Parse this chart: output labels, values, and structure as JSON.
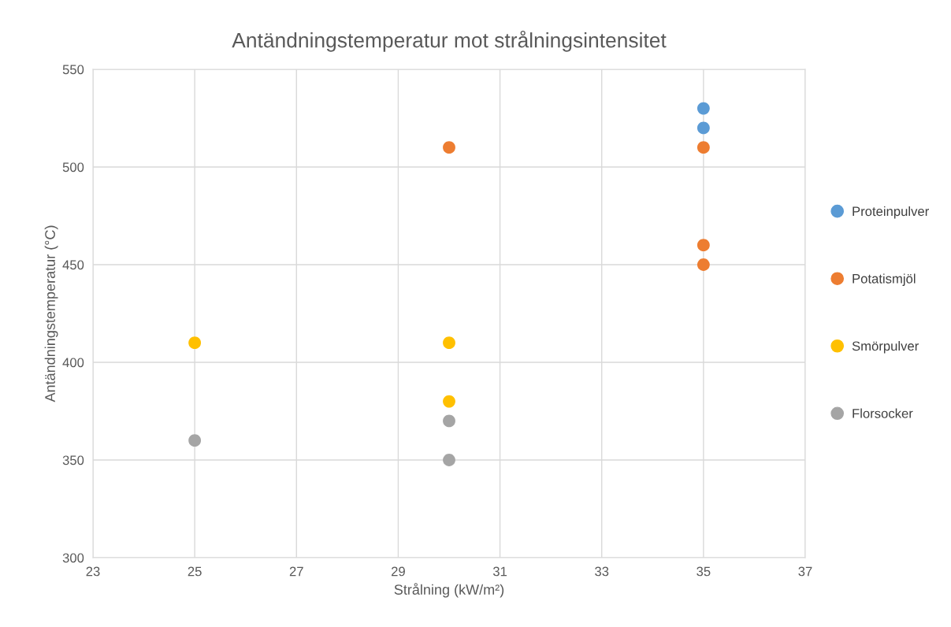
{
  "chart_data": {
    "type": "scatter",
    "title": "Antändningstemperatur mot strålningsintensitet",
    "xlabel": "Strålning (kW/m²)",
    "ylabel": "Antändningstemperatur (°C)",
    "series": [
      {
        "name": "Proteinpulver",
        "color": "#5b9bd5",
        "x": [
          35,
          35
        ],
        "values": [
          530,
          520
        ]
      },
      {
        "name": "Potatismjöl",
        "color": "#ed7d31",
        "x": [
          30,
          35,
          35,
          35
        ],
        "values": [
          510,
          510,
          460,
          450
        ]
      },
      {
        "name": "Smörpulver",
        "color": "#ffc000",
        "x": [
          25,
          30,
          30
        ],
        "values": [
          410,
          410,
          380
        ]
      },
      {
        "name": "Florsocker",
        "color": "#a5a5a5",
        "x": [
          25,
          30,
          30
        ],
        "values": [
          360,
          370,
          350
        ]
      }
    ],
    "xlim": [
      23,
      37
    ],
    "xticks": [
      23,
      25,
      27,
      29,
      31,
      33,
      35,
      37
    ],
    "ylim": [
      300,
      550
    ],
    "yticks": [
      300,
      350,
      400,
      450,
      500,
      550
    ],
    "grid": true,
    "legend": "right",
    "marker": "circle"
  }
}
